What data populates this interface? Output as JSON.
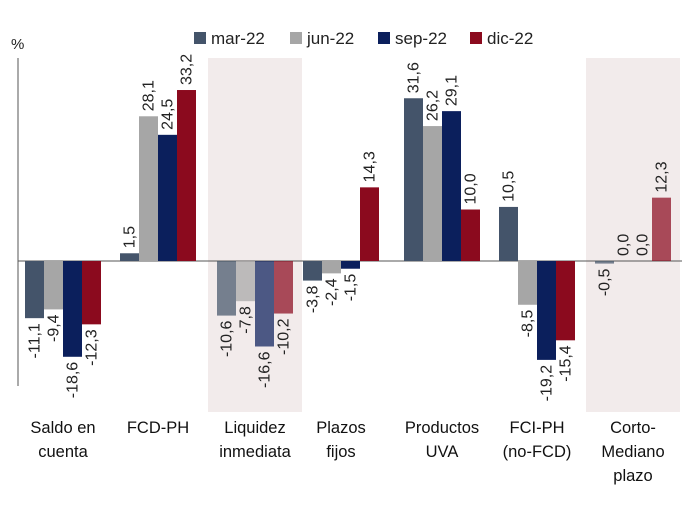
{
  "chart_data": {
    "type": "bar",
    "unit_label": "%",
    "categories": [
      [
        "Saldo en",
        "cuenta"
      ],
      [
        "FCD-PH"
      ],
      [
        "Liquidez",
        "inmediata"
      ],
      [
        "Plazos",
        "fijos"
      ],
      [
        "Productos",
        "UVA"
      ],
      [
        "FCI-PH",
        "(no-FCD)"
      ],
      [
        "Corto-",
        "Mediano",
        "plazo"
      ]
    ],
    "highlighted_categories": [
      2,
      6
    ],
    "series": [
      {
        "name": "mar-22",
        "color": "#44546a",
        "values": [
          -11.1,
          1.5,
          -10.6,
          -3.8,
          31.6,
          10.5,
          -0.5
        ]
      },
      {
        "name": "jun-22",
        "color": "#a6a6a6",
        "values": [
          -9.4,
          28.1,
          -7.8,
          -2.4,
          26.2,
          -8.5,
          0.0
        ]
      },
      {
        "name": "sep-22",
        "color": "#0b1f5c",
        "values": [
          -18.6,
          24.5,
          -16.6,
          -1.5,
          29.1,
          -19.2,
          0.0
        ]
      },
      {
        "name": "dic-22",
        "color": "#8b0a1e",
        "values": [
          -12.3,
          33.2,
          -10.2,
          14.3,
          10.0,
          -15.4,
          12.3
        ]
      }
    ],
    "value_labels": [
      [
        "-11,1",
        "1,5",
        "-10,6",
        "-3,8",
        "31,6",
        "10,5",
        "-0,5"
      ],
      [
        "-9,4",
        "28,1",
        "-7,8",
        "-2,4",
        "26,2",
        "-8,5",
        "0,0"
      ],
      [
        "-18,6",
        "24,5",
        "-16,6",
        "-1,5",
        "29,1",
        "-19,2",
        "0,0"
      ],
      [
        "-12,3",
        "33,2",
        "-10,2",
        "14,3",
        "10,0",
        "-15,4",
        "12,3"
      ]
    ],
    "ylim": [
      -24,
      38
    ],
    "legend_position": "top"
  }
}
